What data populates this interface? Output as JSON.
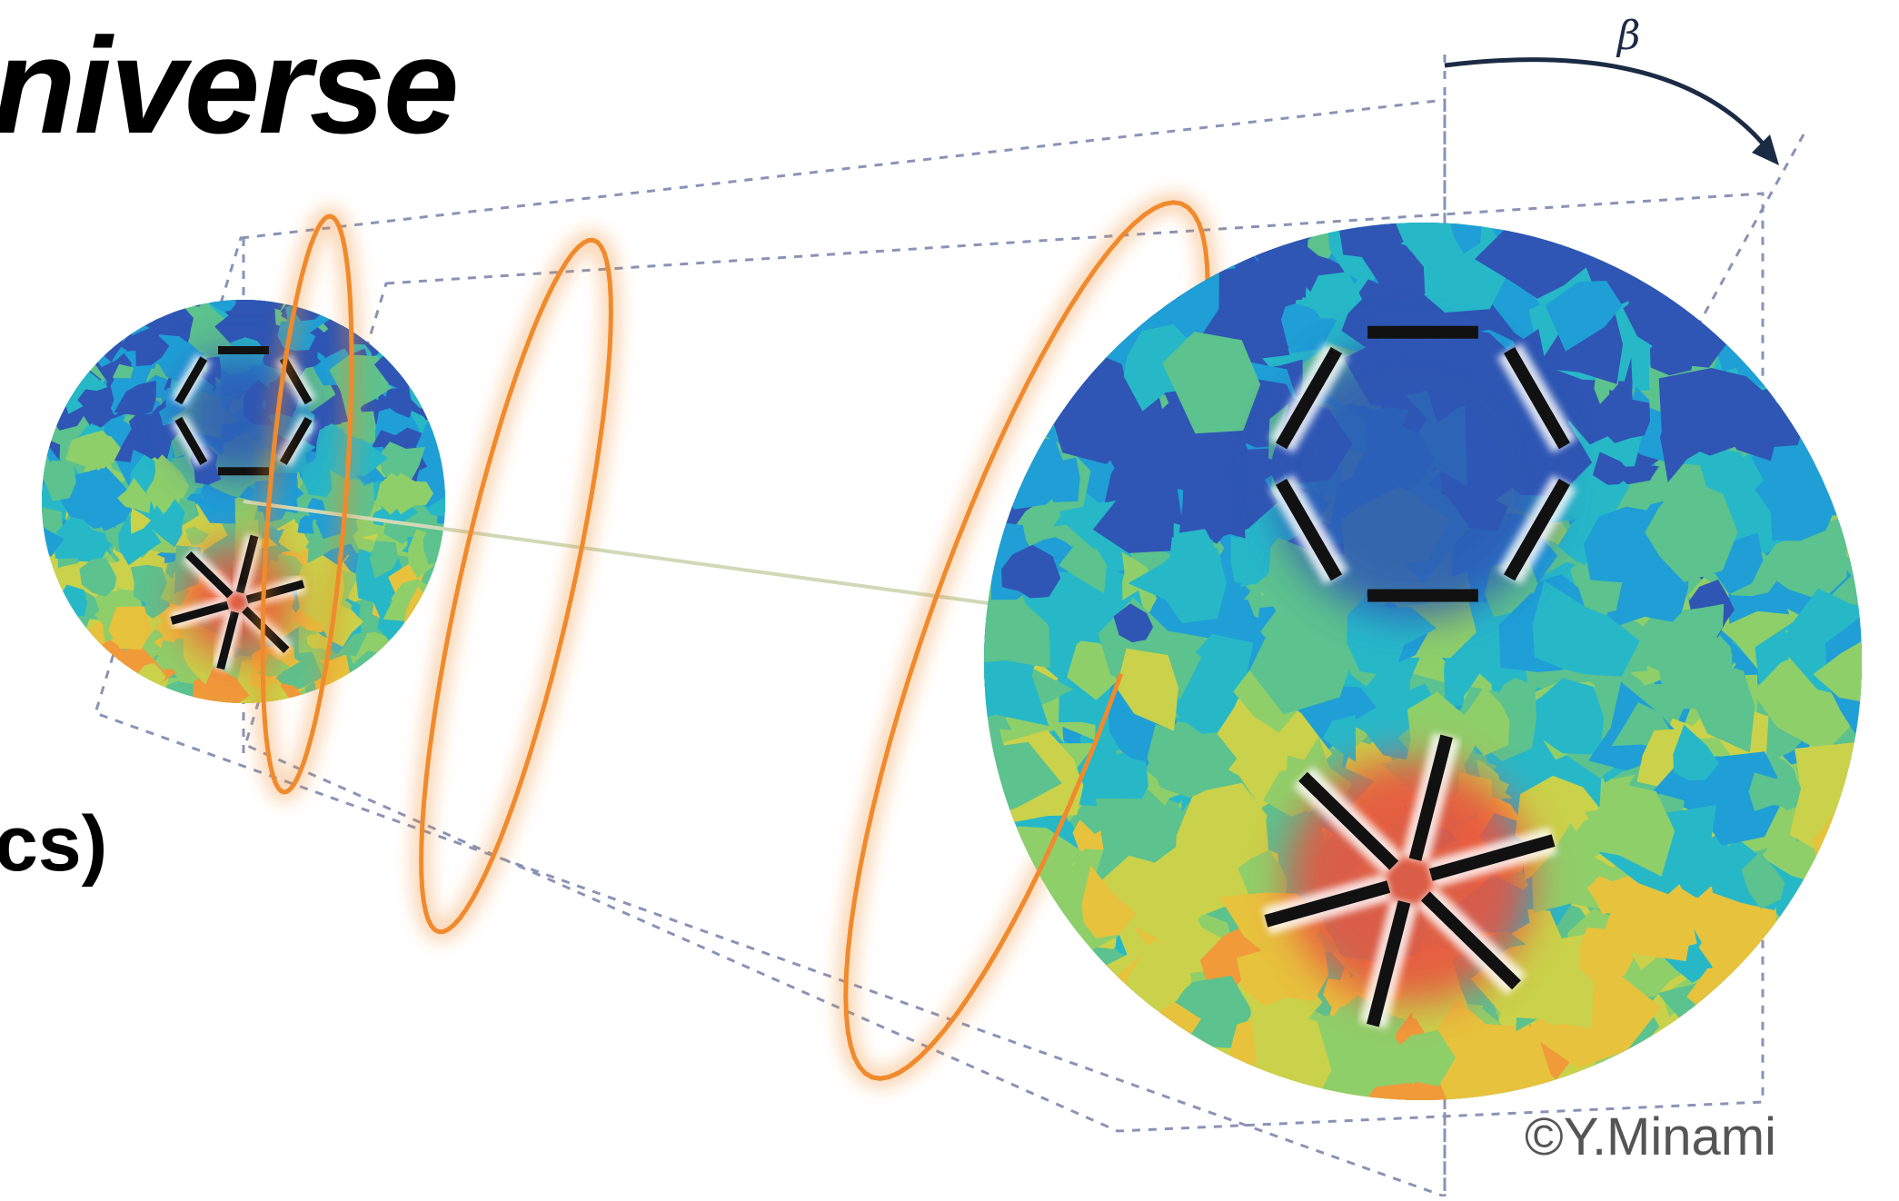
{
  "slide": {
    "title_fragment": "niverse",
    "side_fragment": "cs)",
    "credit": "©Y.Minami",
    "angle_symbol": "β"
  },
  "colors": {
    "wave": "#f08a2c",
    "guide": "#8a93b5",
    "arrow": "#1c2b45",
    "polarization_bar": "#111111",
    "map_palette": [
      "#2f56b4",
      "#1f9fd6",
      "#27b8c8",
      "#5cc28e",
      "#8fcf6a",
      "#c9d24a",
      "#e6c23d",
      "#f09a3a",
      "#e8533f"
    ]
  }
}
